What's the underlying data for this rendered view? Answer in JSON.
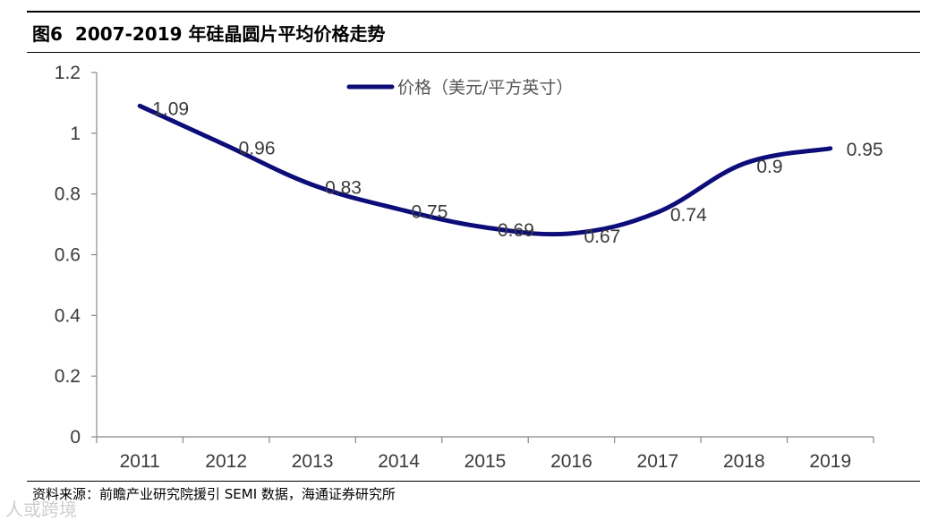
{
  "figure": {
    "number": "图6",
    "title": "2007-2019 年硅晶圆片平均价格走势"
  },
  "source": "资料来源：前瞻产业研究院援引 SEMI 数据，海通证券研究所",
  "watermark": "人或跨境",
  "chart_data": {
    "type": "line",
    "title": "2007-2019 年硅晶圆片平均价格走势",
    "categories": [
      "2011",
      "2012",
      "2013",
      "2014",
      "2015",
      "2016",
      "2017",
      "2018",
      "2019"
    ],
    "series": [
      {
        "name": "价格（美元/平方英寸）",
        "values": [
          1.09,
          0.96,
          0.83,
          0.75,
          0.69,
          0.67,
          0.74,
          0.9,
          0.95
        ],
        "color": "#0d0d7a"
      }
    ],
    "y_ticks": [
      "0",
      "0.2",
      "0.4",
      "0.6",
      "0.8",
      "1",
      "1.2"
    ],
    "ylim": [
      0,
      1.2
    ],
    "smooth": true,
    "data_labels": [
      "1.09",
      "0.96",
      "0.83",
      "0.75",
      "0.69",
      "0.67",
      "0.74",
      "0.9",
      "0.95"
    ],
    "legend_position": "top-center",
    "grid": false
  }
}
